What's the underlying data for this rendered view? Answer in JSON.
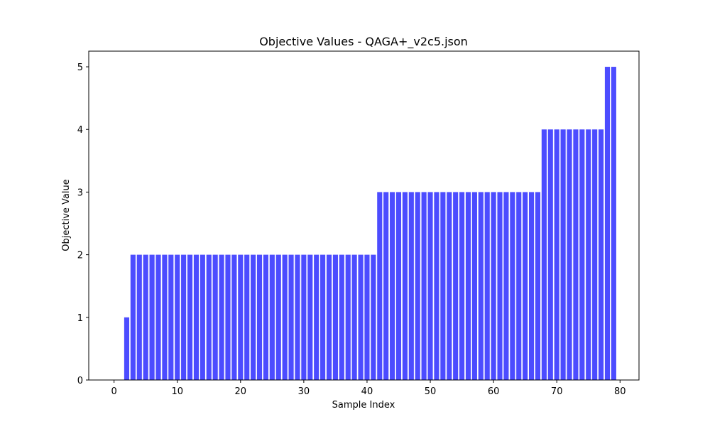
{
  "chart_data": {
    "type": "bar",
    "title": "Objective Values - QAGA+_v2c5.json",
    "xlabel": "Sample Index",
    "ylabel": "Objective Value",
    "bar_color": "#0000ff",
    "bar_opacity": 0.7,
    "xlim": [
      -4,
      83
    ],
    "ylim": [
      0,
      5.25
    ],
    "xticks": [
      0,
      10,
      20,
      30,
      40,
      50,
      60,
      70,
      80
    ],
    "yticks": [
      0,
      1,
      2,
      3,
      4,
      5
    ],
    "grid": false,
    "x": [
      0,
      1,
      2,
      3,
      4,
      5,
      6,
      7,
      8,
      9,
      10,
      11,
      12,
      13,
      14,
      15,
      16,
      17,
      18,
      19,
      20,
      21,
      22,
      23,
      24,
      25,
      26,
      27,
      28,
      29,
      30,
      31,
      32,
      33,
      34,
      35,
      36,
      37,
      38,
      39,
      40,
      41,
      42,
      43,
      44,
      45,
      46,
      47,
      48,
      49,
      50,
      51,
      52,
      53,
      54,
      55,
      56,
      57,
      58,
      59,
      60,
      61,
      62,
      63,
      64,
      65,
      66,
      67,
      68,
      69,
      70,
      71,
      72,
      73,
      74,
      75,
      76,
      77,
      78,
      79
    ],
    "values": [
      0,
      0,
      1,
      2,
      2,
      2,
      2,
      2,
      2,
      2,
      2,
      2,
      2,
      2,
      2,
      2,
      2,
      2,
      2,
      2,
      2,
      2,
      2,
      2,
      2,
      2,
      2,
      2,
      2,
      2,
      2,
      2,
      2,
      2,
      2,
      2,
      2,
      2,
      2,
      2,
      2,
      2,
      3,
      3,
      3,
      3,
      3,
      3,
      3,
      3,
      3,
      3,
      3,
      3,
      3,
      3,
      3,
      3,
      3,
      3,
      3,
      3,
      3,
      3,
      3,
      3,
      3,
      3,
      4,
      4,
      4,
      4,
      4,
      4,
      4,
      4,
      4,
      4,
      5,
      5
    ]
  }
}
